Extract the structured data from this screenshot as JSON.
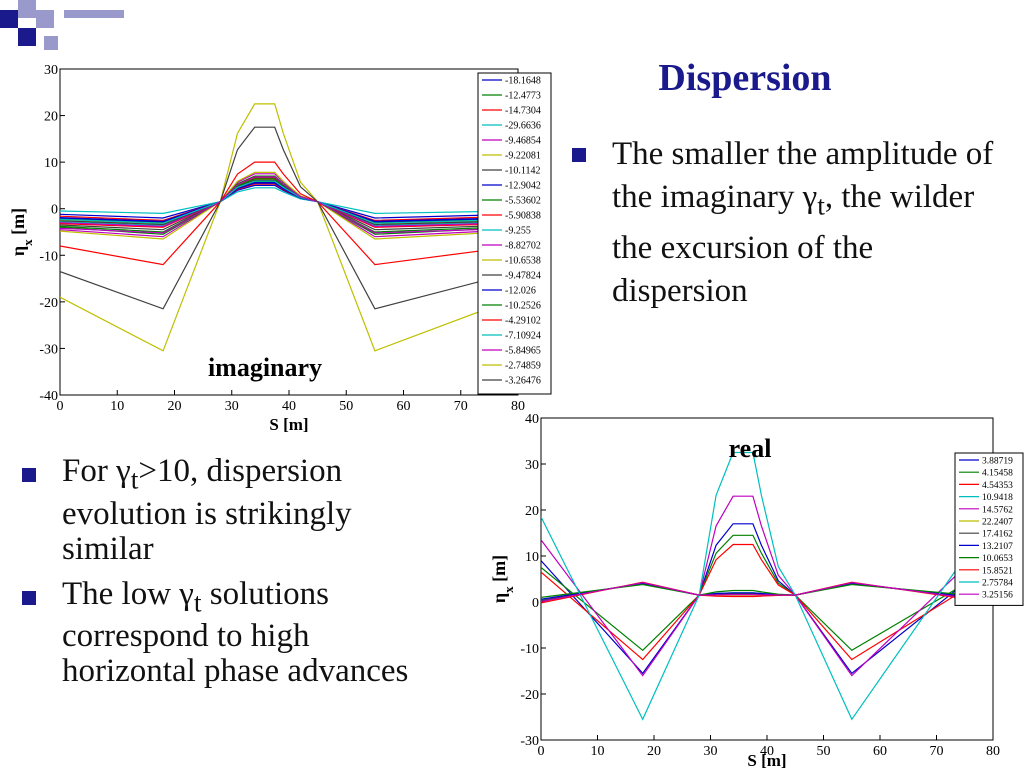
{
  "slide": {
    "title": "Dispersion",
    "bullet_top": {
      "pre": "The smaller the amplitude of the imaginary γ",
      "sub": "t",
      "post": ", the wilder the excursion of the dispersion"
    },
    "bullets_bottom": [
      {
        "pre": "For γ",
        "sub": "t",
        "post": ">10, dispersion evolution is strikingly similar"
      },
      {
        "pre": "The low γ",
        "sub": "t",
        "post": " solutions correspond to high horizontal phase advances"
      }
    ],
    "deco_colors": [
      "#1a1a8c",
      "#9999cc"
    ]
  },
  "chart_data": [
    {
      "type": "line",
      "annotation": "imaginary",
      "xlabel": "S [m]",
      "ylabel": "η",
      "ylabel_sub": "x",
      "ylabel_unit": " [m]",
      "xlim": [
        0,
        80
      ],
      "ylim": [
        -40,
        30
      ],
      "xticks": [
        "0",
        "10",
        "20",
        "30",
        "40",
        "50",
        "60",
        "70",
        "80"
      ],
      "yticks": [
        "30",
        "20",
        "10",
        "0",
        "-10",
        "-20",
        "-30",
        "-40"
      ],
      "grid": false,
      "legend_position": "right",
      "x": [
        0,
        18,
        28,
        31,
        34,
        37.5,
        39,
        42,
        45,
        55,
        80
      ],
      "series": [
        {
          "name": "-18.1648",
          "color": "#0000cc",
          "peak": 5.0,
          "edge": -1.2,
          "valley": -2.0
        },
        {
          "name": "-12.4773",
          "color": "#008000",
          "peak": 5.8,
          "edge": -2.2,
          "valley": -3.0
        },
        {
          "name": "-14.7304",
          "color": "#ff0000",
          "peak": 5.3,
          "edge": -1.6,
          "valley": -2.5
        },
        {
          "name": "-29.6636",
          "color": "#00bfbf",
          "peak": 4.5,
          "edge": -0.5,
          "valley": -1.0
        },
        {
          "name": "-9.46854",
          "color": "#bf00bf",
          "peak": 7.5,
          "edge": -4.5,
          "valley": -6.0
        },
        {
          "name": "-9.22081",
          "color": "#bfbf00",
          "peak": 7.8,
          "edge": -4.8,
          "valley": -6.5
        },
        {
          "name": "-10.1142",
          "color": "#404040",
          "peak": 6.6,
          "edge": -3.5,
          "valley": -4.5
        },
        {
          "name": "-12.9042",
          "color": "#0000cc",
          "peak": 5.6,
          "edge": -1.9,
          "valley": -2.7
        },
        {
          "name": "-5.53602",
          "color": "#008000",
          "peak": 7.0,
          "edge": -4.0,
          "valley": -5.5
        },
        {
          "name": "-5.90838",
          "color": "#ff0000",
          "peak": 6.5,
          "edge": -3.2,
          "valley": -4.0
        },
        {
          "name": "-9.255",
          "color": "#00bfbf",
          "peak": 6.0,
          "edge": -2.8,
          "valley": -3.6
        },
        {
          "name": "-8.82702",
          "color": "#bf00bf",
          "peak": 6.3,
          "edge": -3.0,
          "valley": -3.8
        },
        {
          "name": "-10.6538",
          "color": "#bfbf00",
          "peak": 6.2,
          "edge": -2.5,
          "valley": -3.2
        },
        {
          "name": "-9.47824",
          "color": "#404040",
          "peak": 6.1,
          "edge": -2.6,
          "valley": -3.4
        },
        {
          "name": "-12.026",
          "color": "#0000cc",
          "peak": 5.5,
          "edge": -2.0,
          "valley": -2.8
        },
        {
          "name": "-10.2526",
          "color": "#008000",
          "peak": 6.4,
          "edge": -3.8,
          "valley": -5.0
        },
        {
          "name": "-4.29102",
          "color": "#ff0000",
          "peak": 10.0,
          "edge": -8.0,
          "valley": -12.0
        },
        {
          "name": "-7.10924",
          "color": "#00bfbf",
          "peak": 5.9,
          "edge": -2.3,
          "valley": -3.1
        },
        {
          "name": "-5.84965",
          "color": "#bf00bf",
          "peak": 6.8,
          "edge": -4.2,
          "valley": -5.2
        },
        {
          "name": "-2.74859",
          "color": "#bfbf00",
          "peak": 22.5,
          "edge": -19.0,
          "valley": -30.5
        },
        {
          "name": "-3.26476",
          "color": "#404040",
          "peak": 17.5,
          "edge": -13.5,
          "valley": -21.5
        }
      ]
    },
    {
      "type": "line",
      "annotation": "real",
      "xlabel": "S [m]",
      "ylabel": "η",
      "ylabel_sub": "x",
      "ylabel_unit": " [m]",
      "xlim": [
        0,
        80
      ],
      "ylim": [
        -30,
        40
      ],
      "xticks": [
        "0",
        "10",
        "20",
        "30",
        "40",
        "50",
        "60",
        "70",
        "80"
      ],
      "yticks": [
        "40",
        "30",
        "20",
        "10",
        "0",
        "-10",
        "-20",
        "-30"
      ],
      "grid": false,
      "legend_position": "top-right",
      "x": [
        0,
        18,
        28,
        31,
        34,
        37.5,
        39,
        42,
        45,
        55,
        80
      ],
      "series": [
        {
          "name": "3.88719",
          "color": "#0000cc",
          "peak": 17.0,
          "edge": 9.0,
          "valley": -15.5
        },
        {
          "name": "4.15458",
          "color": "#008000",
          "peak": 14.5,
          "edge": 7.5,
          "valley": -10.5
        },
        {
          "name": "4.54353",
          "color": "#ff0000",
          "peak": 12.5,
          "edge": 6.5,
          "valley": -12.5
        },
        {
          "name": "10.9418",
          "color": "#00bfbf",
          "peak": 2.0,
          "edge": 0.5,
          "valley": 4.0
        },
        {
          "name": "14.5762",
          "color": "#bf00bf",
          "peak": 23.0,
          "edge": 13.5,
          "valley": -16.0
        },
        {
          "name": "22.2407",
          "color": "#bfbf00",
          "peak": 1.5,
          "edge": 0.2,
          "valley": 4.2
        },
        {
          "name": "17.4162",
          "color": "#404040",
          "peak": 1.8,
          "edge": 0.3,
          "valley": 4.1
        },
        {
          "name": "13.2107",
          "color": "#0000cc",
          "peak": 2.0,
          "edge": 0.6,
          "valley": 4.0
        },
        {
          "name": "10.0653",
          "color": "#008000",
          "peak": 2.5,
          "edge": 1.0,
          "valley": 3.8
        },
        {
          "name": "15.8521",
          "color": "#ff0000",
          "peak": 1.2,
          "edge": -0.2,
          "valley": 4.3
        },
        {
          "name": "2.75784",
          "color": "#00bfbf",
          "peak": 32.5,
          "edge": 18.5,
          "valley": -25.5
        },
        {
          "name": "3.25156",
          "color": "#bf00bf",
          "peak": 1.6,
          "edge": 0.1,
          "valley": 4.2
        }
      ]
    }
  ]
}
